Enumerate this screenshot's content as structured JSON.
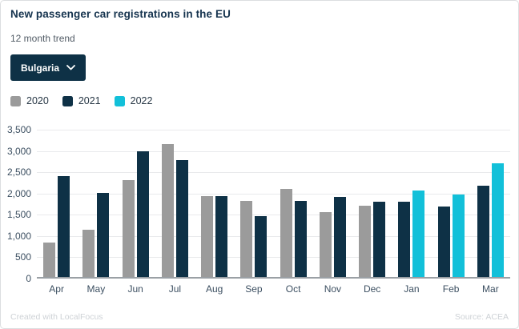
{
  "header": {
    "title": "New passenger car registrations in the EU",
    "subtitle": "12 month trend"
  },
  "filter": {
    "label": "Bulgaria",
    "icon": "chevron-down"
  },
  "chart_data": {
    "type": "bar",
    "title": "New passenger car registrations in the EU",
    "subtitle": "12 month trend",
    "categories": [
      "Apr",
      "May",
      "Jun",
      "Jul",
      "Aug",
      "Sep",
      "Oct",
      "Nov",
      "Dec",
      "Jan",
      "Feb",
      "Mar"
    ],
    "series": [
      {
        "name": "2020",
        "color": "#9b9b9b",
        "values": [
          820,
          1120,
          2300,
          3150,
          1930,
          1810,
          2100,
          1540,
          1700,
          null,
          null,
          null
        ]
      },
      {
        "name": "2021",
        "color": "#0e3146",
        "values": [
          2400,
          1990,
          2980,
          2780,
          1920,
          1440,
          1810,
          1910,
          1790,
          1780,
          1670,
          2160
        ]
      },
      {
        "name": "2022",
        "color": "#12c0d9",
        "values": [
          null,
          null,
          null,
          null,
          null,
          null,
          null,
          null,
          null,
          2050,
          1960,
          2710
        ]
      }
    ],
    "xlabel": "",
    "ylabel": "",
    "ylim": [
      0,
      3500
    ],
    "yticks": [
      0,
      500,
      1000,
      1500,
      2000,
      2500,
      3000,
      3500
    ],
    "ytick_labels": [
      "0",
      "500",
      "1,000",
      "1,500",
      "2,000",
      "2,500",
      "3,000",
      "3,500"
    ],
    "grid": true,
    "legend_position": "top-left",
    "colors": {
      "gridline": "#e9eaec",
      "axis_line": "#9aa0a5",
      "tick_text": "#3c4f61"
    }
  },
  "footer": {
    "left": "Created with LocalFocus",
    "right": "Source: ACEA"
  }
}
